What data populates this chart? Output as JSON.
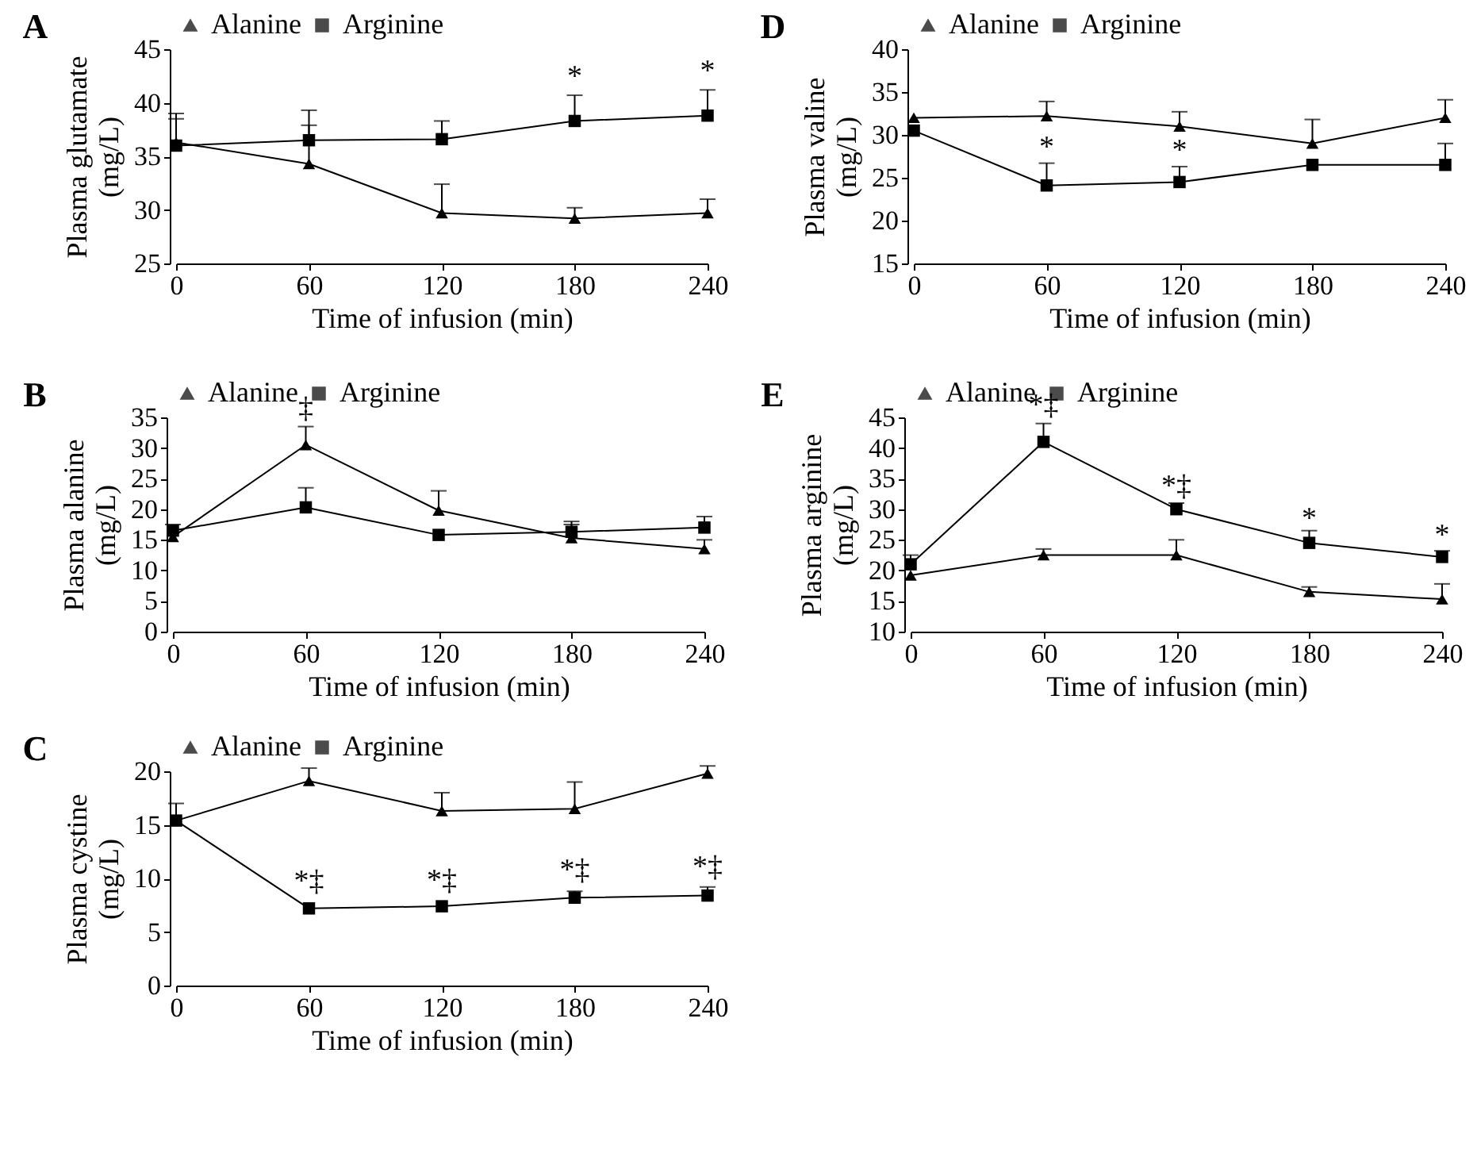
{
  "chart_data": [
    {
      "type": "line",
      "title": "A",
      "xlabel": "Time of infusion (min)",
      "ylabel": "Plasma glutamate (mg/L)",
      "x": [
        0,
        60,
        120,
        180,
        240
      ],
      "xlim": [
        0,
        240
      ],
      "xticks": [
        0,
        60,
        120,
        180,
        240
      ],
      "ylim": [
        25,
        45
      ],
      "yticks": [
        25,
        30,
        35,
        40,
        45
      ],
      "legend": "top",
      "grid": false,
      "series": [
        {
          "name": "Alanine",
          "color": "#000000",
          "marker": "triangle",
          "values": [
            36.3,
            34.3,
            29.7,
            29.2,
            29.7
          ],
          "errors": [
            [
              36.3,
              38.5
            ],
            [
              34.3,
              37.9
            ],
            [
              29.7,
              32.4
            ],
            [
              29.2,
              30.2
            ],
            [
              29.7,
              31.0
            ]
          ]
        },
        {
          "name": "Arginine",
          "color": "#000000",
          "marker": "square",
          "values": [
            36.0,
            36.5,
            36.6,
            38.3,
            38.8
          ],
          "errors": [
            [
              36.0,
              39.0
            ],
            [
              36.5,
              39.3
            ],
            [
              36.6,
              38.3
            ],
            [
              38.3,
              40.7
            ],
            [
              38.8,
              41.2
            ]
          ]
        }
      ],
      "annotations": [
        {
          "text": "*",
          "x": 180,
          "y": 41.0
        },
        {
          "text": "*",
          "x": 240,
          "y": 41.5
        }
      ]
    },
    {
      "type": "line",
      "title": "B",
      "xlabel": "Time of infusion (min)",
      "ylabel": "Plasma alanine (mg/L)",
      "x": [
        0,
        60,
        120,
        180,
        240
      ],
      "xlim": [
        0,
        240
      ],
      "xticks": [
        0,
        60,
        120,
        180,
        240
      ],
      "ylim": [
        0,
        35
      ],
      "yticks": [
        0,
        5,
        10,
        15,
        20,
        25,
        30,
        35
      ],
      "legend": "top",
      "grid": false,
      "series": [
        {
          "name": "Alanine",
          "color": "#000000",
          "marker": "triangle",
          "values": [
            15.5,
            30.5,
            19.8,
            15.3,
            13.5
          ],
          "errors": [
            null,
            [
              30.5,
              33.5
            ],
            [
              19.8,
              23.0
            ],
            [
              15.3,
              17.5
            ],
            [
              13.5,
              15.0
            ]
          ]
        },
        {
          "name": "Arginine",
          "color": "#000000",
          "marker": "square",
          "values": [
            16.5,
            20.3,
            15.8,
            16.3,
            17.0
          ],
          "errors": [
            [
              16.5,
              17.5
            ],
            [
              20.3,
              23.5
            ],
            null,
            [
              16.3,
              18.0
            ],
            [
              17.0,
              18.8
            ]
          ]
        }
      ],
      "annotations": [
        {
          "text": "‡",
          "x": 60,
          "y": 34.0
        }
      ]
    },
    {
      "type": "line",
      "title": "C",
      "xlabel": "Time of infusion (min)",
      "ylabel": "Plasma cystine (mg/L)",
      "x": [
        0,
        60,
        120,
        180,
        240
      ],
      "xlim": [
        0,
        240
      ],
      "xticks": [
        0,
        60,
        120,
        180,
        240
      ],
      "ylim": [
        0,
        20
      ],
      "yticks": [
        0,
        5,
        10,
        15,
        20
      ],
      "legend": "top",
      "grid": false,
      "series": [
        {
          "name": "Alanine",
          "color": "#000000",
          "marker": "triangle",
          "values": [
            15.4,
            19.1,
            16.3,
            16.5,
            19.8
          ],
          "errors": [
            [
              15.4,
              17.0
            ],
            [
              19.1,
              20.3
            ],
            [
              16.3,
              18.0
            ],
            [
              16.5,
              19.0
            ],
            [
              19.8,
              20.5
            ]
          ]
        },
        {
          "name": "Arginine",
          "color": "#000000",
          "marker": "square",
          "values": [
            15.4,
            7.2,
            7.4,
            8.2,
            8.4
          ],
          "errors": [
            null,
            null,
            null,
            [
              8.2,
              8.8
            ],
            [
              8.4,
              9.2
            ]
          ]
        }
      ],
      "annotations": [
        {
          "text": "*‡",
          "x": 60,
          "y": 8.3
        },
        {
          "text": "*‡",
          "x": 120,
          "y": 8.4
        },
        {
          "text": "*‡",
          "x": 180,
          "y": 9.3
        },
        {
          "text": "*‡",
          "x": 240,
          "y": 9.6
        }
      ]
    },
    {
      "type": "line",
      "title": "D",
      "xlabel": "Time of infusion (min)",
      "ylabel": "Plasma valine (mg/L)",
      "x": [
        0,
        60,
        120,
        180,
        240
      ],
      "xlim": [
        0,
        240
      ],
      "xticks": [
        0,
        60,
        120,
        180,
        240
      ],
      "ylim": [
        15,
        40
      ],
      "yticks": [
        15,
        20,
        25,
        30,
        35,
        40
      ],
      "legend": "top",
      "grid": false,
      "series": [
        {
          "name": "Alanine",
          "color": "#000000",
          "marker": "triangle",
          "values": [
            32.0,
            32.2,
            31.0,
            29.0,
            32.0
          ],
          "errors": [
            null,
            [
              32.2,
              33.9
            ],
            [
              31.0,
              32.7
            ],
            [
              29.0,
              31.8
            ],
            [
              32.0,
              34.1
            ]
          ]
        },
        {
          "name": "Arginine",
          "color": "#000000",
          "marker": "square",
          "values": [
            30.5,
            24.1,
            24.5,
            26.5,
            26.5
          ],
          "errors": [
            null,
            [
              24.1,
              26.7
            ],
            [
              24.5,
              26.3
            ],
            null,
            [
              26.5,
              29.0
            ]
          ]
        }
      ],
      "annotations": [
        {
          "text": "*",
          "x": 60,
          "y": 26.8
        },
        {
          "text": "*",
          "x": 120,
          "y": 26.4
        }
      ]
    },
    {
      "type": "line",
      "title": "E",
      "xlabel": "Time of infusion (min)",
      "ylabel": "Plasma arginine (mg/L)",
      "x": [
        0,
        60,
        120,
        180,
        240
      ],
      "xlim": [
        0,
        240
      ],
      "xticks": [
        0,
        60,
        120,
        180,
        240
      ],
      "ylim": [
        10,
        45
      ],
      "yticks": [
        10,
        15,
        20,
        25,
        30,
        35,
        40,
        45
      ],
      "legend": "top",
      "grid": false,
      "series": [
        {
          "name": "Alanine",
          "color": "#000000",
          "marker": "triangle",
          "values": [
            19.2,
            22.5,
            22.5,
            16.5,
            15.3
          ],
          "errors": [
            null,
            [
              22.5,
              23.5
            ],
            [
              22.5,
              25.0
            ],
            [
              16.5,
              17.3
            ],
            [
              15.3,
              17.8
            ]
          ]
        },
        {
          "name": "Arginine",
          "color": "#000000",
          "marker": "square",
          "values": [
            21.0,
            41.0,
            30.0,
            24.5,
            22.2
          ],
          "errors": [
            [
              21.0,
              22.5
            ],
            [
              41.0,
              44.0
            ],
            [
              30.0,
              31.0
            ],
            [
              24.5,
              26.5
            ],
            [
              22.2,
              23.2
            ]
          ]
        }
      ],
      "annotations": [
        {
          "text": "*‡",
          "x": 60,
          "y": 44.5
        },
        {
          "text": "*‡",
          "x": 120,
          "y": 31.3
        },
        {
          "text": "*",
          "x": 180,
          "y": 26.0
        },
        {
          "text": "*",
          "x": 240,
          "y": 23.2
        }
      ]
    }
  ]
}
